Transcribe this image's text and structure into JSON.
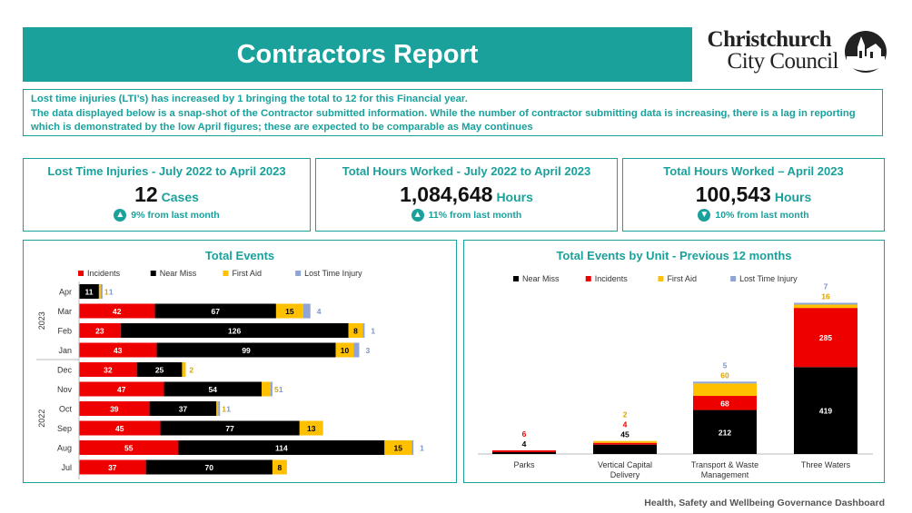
{
  "header": {
    "title": "Contractors Report"
  },
  "logo": {
    "line1": "Christchurch",
    "line2": "City Council"
  },
  "notice": {
    "line1": "Lost time injuries (LTI’s) has increased by 1 bringing the total to 12 for this Financial year.",
    "line2": "The data displayed below is a snap-shot of the Contractor submitted information. While the number of contractor submitting data is increasing, there is a lag in reporting which is demonstrated by the low April figures; these are expected to be comparable as May continues"
  },
  "kpis": [
    {
      "title": "Lost Time Injuries - July 2022 to April 2023",
      "value": "12",
      "unit": "Cases",
      "change": "9% from last month",
      "direction": "up"
    },
    {
      "title": "Total Hours Worked - July 2022 to April 2023",
      "value": "1,084,648",
      "unit": "Hours",
      "change": "11% from last month",
      "direction": "up"
    },
    {
      "title": "Total Hours Worked – April 2023",
      "value": "100,543",
      "unit": "Hours",
      "change": "10% from last month",
      "direction": "down"
    }
  ],
  "footer": {
    "text": "Health, Safety and Wellbeing Governance Dashboard"
  },
  "colors": {
    "teal": "#1aa19c",
    "incidents": "#ee0000",
    "near_miss": "#000000",
    "first_aid": "#ffc000",
    "lti": "#8fa5d6"
  },
  "chart_data": [
    {
      "type": "bar",
      "orientation": "horizontal",
      "stacked": true,
      "title": "Total Events",
      "legend": [
        "Incidents",
        "Near Miss",
        "First Aid",
        "Lost Time Injury"
      ],
      "legend_position": "top",
      "categories": [
        "Apr",
        "Mar",
        "Feb",
        "Jan",
        "Dec",
        "Nov",
        "Oct",
        "Sep",
        "Aug",
        "Jul"
      ],
      "year_groups": [
        {
          "label": "2023",
          "months": [
            "Apr",
            "Mar",
            "Feb",
            "Jan"
          ]
        },
        {
          "label": "2022",
          "months": [
            "Dec",
            "Nov",
            "Oct",
            "Sep",
            "Aug",
            "Jul"
          ]
        }
      ],
      "series": [
        {
          "name": "Incidents",
          "values": [
            0,
            42,
            23,
            43,
            32,
            47,
            39,
            45,
            55,
            37
          ]
        },
        {
          "name": "Near Miss",
          "values": [
            11,
            67,
            126,
            99,
            25,
            54,
            37,
            77,
            114,
            70
          ]
        },
        {
          "name": "First Aid",
          "values": [
            1,
            15,
            8,
            10,
            2,
            5,
            1,
            13,
            15,
            8
          ]
        },
        {
          "name": "Lost Time Injury",
          "values": [
            1,
            4,
            1,
            3,
            0,
            1,
            1,
            0,
            1,
            0
          ]
        }
      ],
      "labels": [
        [
          "",
          "11",
          "1",
          "1"
        ],
        [
          "42",
          "67",
          "15",
          "4"
        ],
        [
          "23",
          "126",
          "8",
          "1"
        ],
        [
          "43",
          "99",
          "10",
          "3"
        ],
        [
          "32",
          "25",
          "2",
          ""
        ],
        [
          "47",
          "54",
          "5",
          "1"
        ],
        [
          "39",
          "37",
          "1",
          "1"
        ],
        [
          "45",
          "77",
          "13",
          ""
        ],
        [
          "55",
          "114",
          "15",
          "1"
        ],
        [
          "37",
          "70",
          "8",
          ""
        ]
      ]
    },
    {
      "type": "bar",
      "orientation": "vertical",
      "stacked": true,
      "title": "Total Events by Unit - Previous 12 months",
      "legend": [
        "Near Miss",
        "Incidents",
        "First Aid",
        "Lost Time Injury"
      ],
      "legend_position": "top",
      "categories": [
        "Parks",
        "Vertical Capital Delivery",
        "Transport & Waste Management",
        "Three Waters"
      ],
      "series": [
        {
          "name": "Near Miss",
          "values": [
            4,
            45,
            212,
            419
          ]
        },
        {
          "name": "Incidents",
          "values": [
            6,
            4,
            68,
            285
          ]
        },
        {
          "name": "First Aid",
          "values": [
            0,
            2,
            60,
            16
          ]
        },
        {
          "name": "Lost Time Injury",
          "values": [
            0,
            0,
            5,
            7
          ]
        }
      ],
      "labels": [
        [
          "4",
          "6",
          "",
          ""
        ],
        [
          "45",
          "4",
          "2",
          ""
        ],
        [
          "212",
          "68",
          "60",
          "5"
        ],
        [
          "419",
          "285",
          "16",
          "7"
        ]
      ]
    }
  ]
}
